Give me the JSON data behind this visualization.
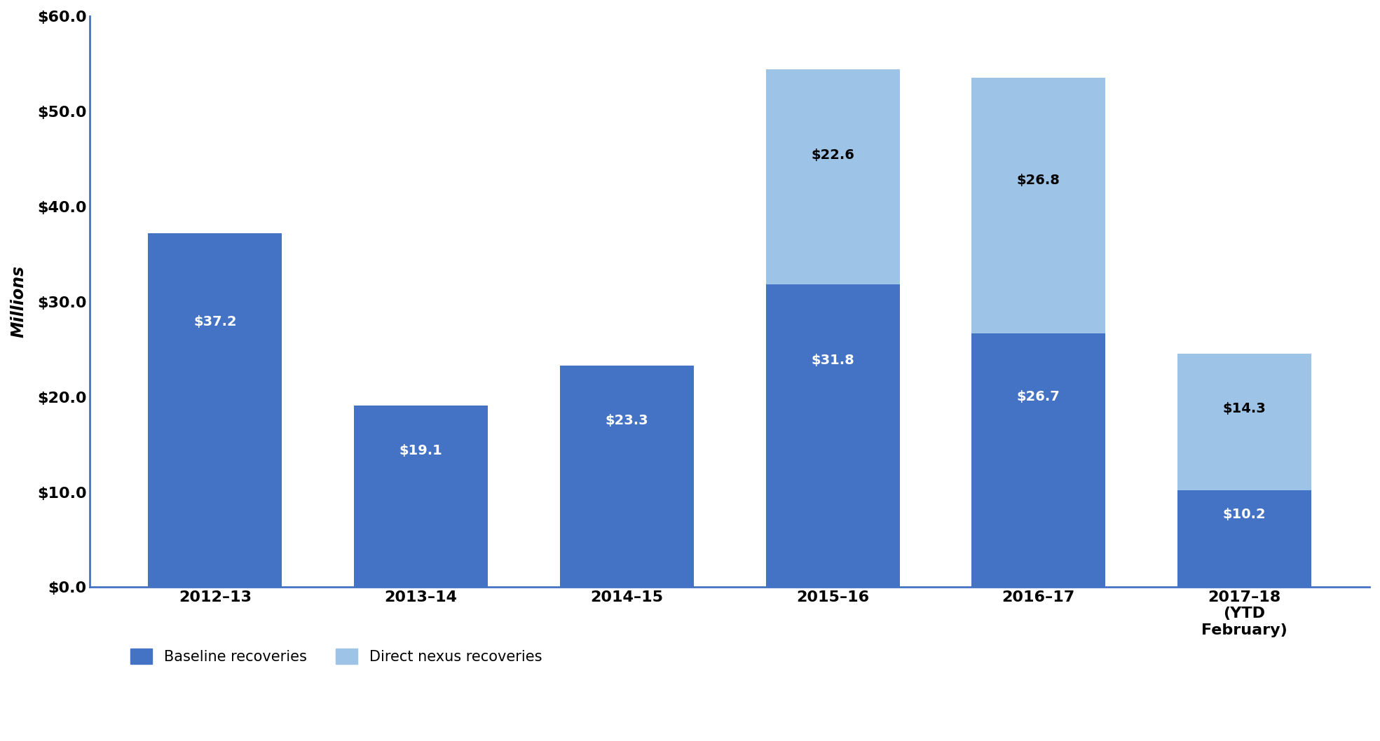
{
  "categories": [
    "2012–13",
    "2013–14",
    "2014–15",
    "2015–16",
    "2016–17",
    "2017–18\n(YTD\nFebruary)"
  ],
  "baseline": [
    37.2,
    19.1,
    23.3,
    31.8,
    26.7,
    10.2
  ],
  "direct_nexus": [
    0,
    0,
    0,
    22.6,
    26.8,
    14.3
  ],
  "baseline_color": "#4472C4",
  "direct_nexus_color": "#9DC3E6",
  "ylabel": "Millions",
  "ylim": [
    0,
    60
  ],
  "yticks": [
    0,
    10,
    20,
    30,
    40,
    50,
    60
  ],
  "ytick_labels": [
    "$0.0",
    "$10.0",
    "$20.0",
    "$30.0",
    "$40.0",
    "$50.0",
    "$60.0"
  ],
  "legend_baseline": "Baseline recoveries",
  "legend_nexus": "Direct nexus recoveries",
  "bar_width": 0.65,
  "label_fontsize": 14,
  "axis_tick_fontsize": 16,
  "ylabel_fontsize": 17,
  "legend_fontsize": 15,
  "spine_color": "#4472C4",
  "background_color": "#ffffff"
}
